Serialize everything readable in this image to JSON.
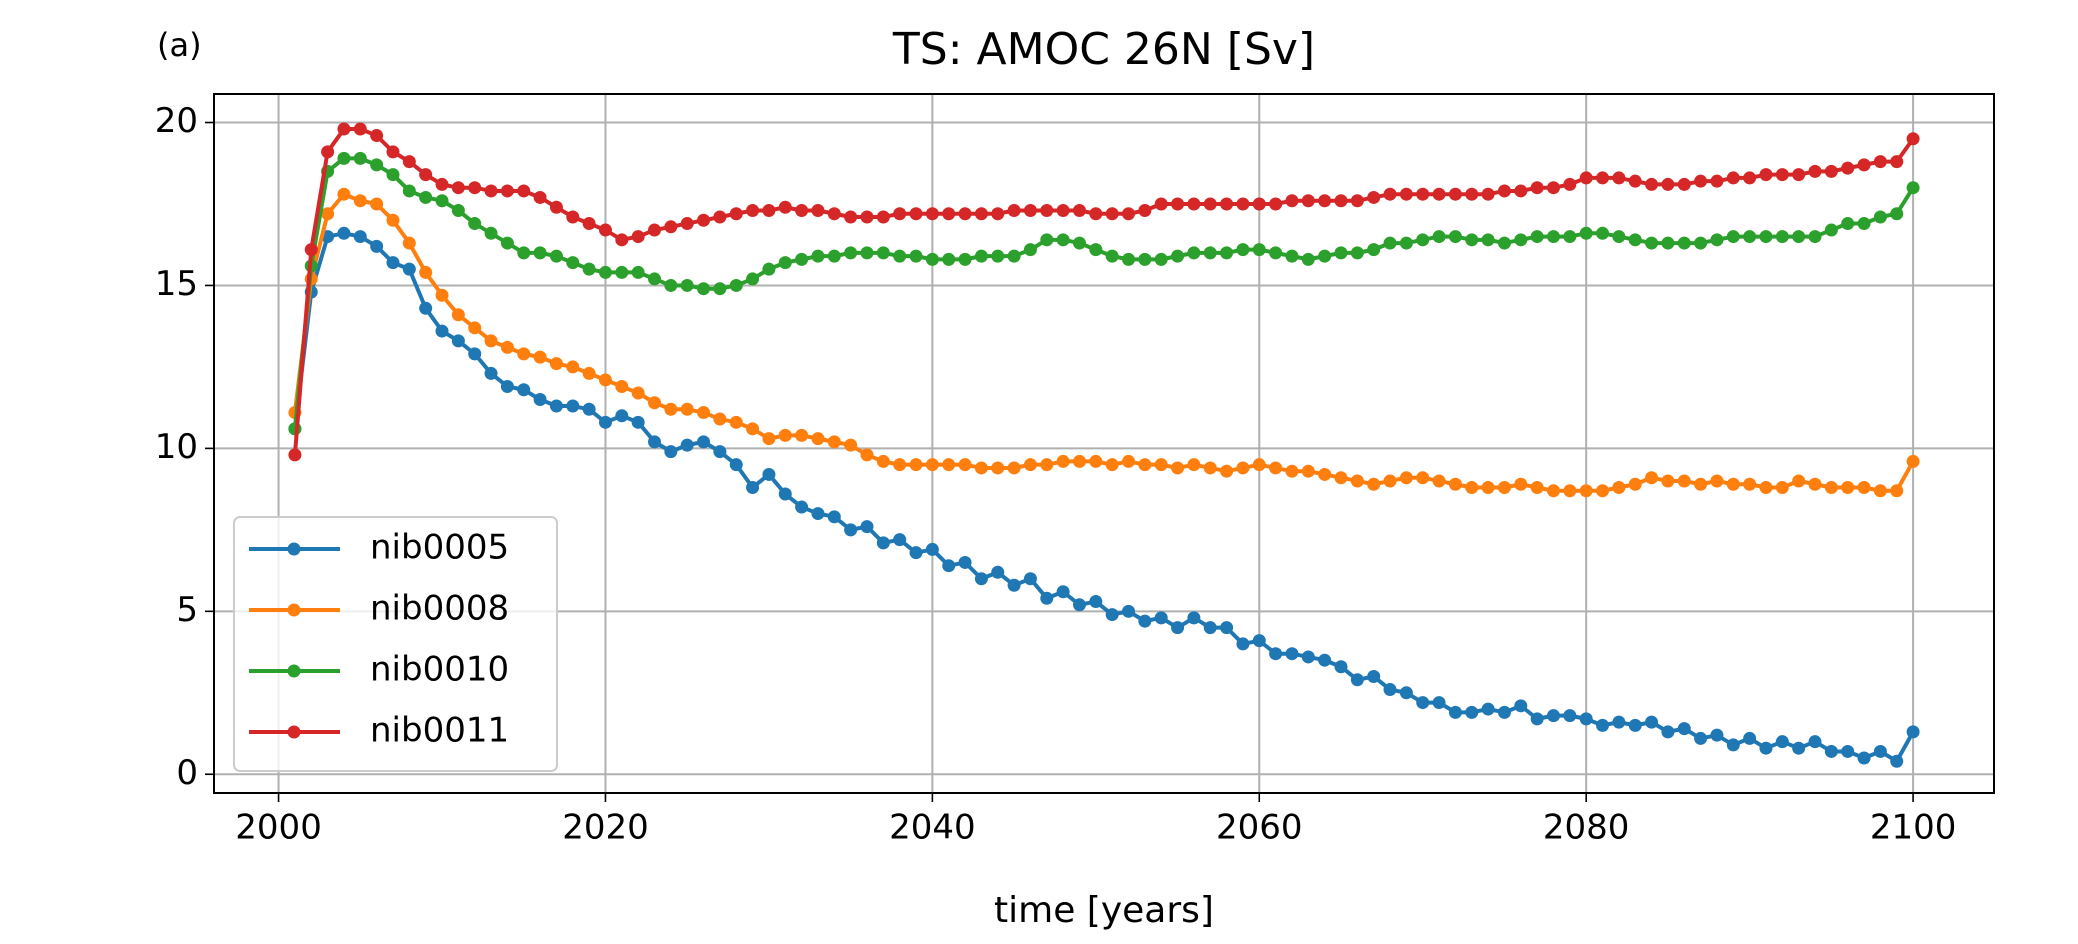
{
  "chart_data": {
    "type": "line",
    "title": "TS: AMOC 26N [Sv]",
    "panel_label": "(a)",
    "xlabel": "time [years]",
    "x": [
      2001,
      2002,
      2003,
      2004,
      2005,
      2006,
      2007,
      2008,
      2009,
      2010,
      2011,
      2012,
      2013,
      2014,
      2015,
      2016,
      2017,
      2018,
      2019,
      2020,
      2021,
      2022,
      2023,
      2024,
      2025,
      2026,
      2027,
      2028,
      2029,
      2030,
      2031,
      2032,
      2033,
      2034,
      2035,
      2036,
      2037,
      2038,
      2039,
      2040,
      2041,
      2042,
      2043,
      2044,
      2045,
      2046,
      2047,
      2048,
      2049,
      2050,
      2051,
      2052,
      2053,
      2054,
      2055,
      2056,
      2057,
      2058,
      2059,
      2060,
      2061,
      2062,
      2063,
      2064,
      2065,
      2066,
      2067,
      2068,
      2069,
      2070,
      2071,
      2072,
      2073,
      2074,
      2075,
      2076,
      2077,
      2078,
      2079,
      2080,
      2081,
      2082,
      2083,
      2084,
      2085,
      2086,
      2087,
      2088,
      2089,
      2090,
      2091,
      2092,
      2093,
      2094,
      2095,
      2096,
      2097,
      2098,
      2099,
      2100
    ],
    "series": [
      {
        "name": "nib0005",
        "color": "#1f77b4",
        "values": [
          10.6,
          14.8,
          16.5,
          16.6,
          16.5,
          16.2,
          15.7,
          15.5,
          14.3,
          13.6,
          13.3,
          12.9,
          12.3,
          11.9,
          11.8,
          11.5,
          11.3,
          11.3,
          11.2,
          10.8,
          11.0,
          10.8,
          10.2,
          9.9,
          10.1,
          10.2,
          9.9,
          9.5,
          8.8,
          9.2,
          8.6,
          8.2,
          8.0,
          7.9,
          7.5,
          7.6,
          7.1,
          7.2,
          6.8,
          6.9,
          6.4,
          6.5,
          6.0,
          6.2,
          5.8,
          6.0,
          5.4,
          5.6,
          5.2,
          5.3,
          4.9,
          5.0,
          4.7,
          4.8,
          4.5,
          4.8,
          4.5,
          4.5,
          4.0,
          4.1,
          3.7,
          3.7,
          3.6,
          3.5,
          3.3,
          2.9,
          3.0,
          2.6,
          2.5,
          2.2,
          2.2,
          1.9,
          1.9,
          2.0,
          1.9,
          2.1,
          1.7,
          1.8,
          1.8,
          1.7,
          1.5,
          1.6,
          1.5,
          1.6,
          1.3,
          1.4,
          1.1,
          1.2,
          0.9,
          1.1,
          0.8,
          1.0,
          0.8,
          1.0,
          0.7,
          0.7,
          0.5,
          0.7,
          0.4,
          1.3
        ]
      },
      {
        "name": "nib0008",
        "color": "#ff7f0e",
        "values": [
          11.1,
          15.2,
          17.2,
          17.8,
          17.6,
          17.5,
          17.0,
          16.3,
          15.4,
          14.7,
          14.1,
          13.7,
          13.3,
          13.1,
          12.9,
          12.8,
          12.6,
          12.5,
          12.3,
          12.1,
          11.9,
          11.7,
          11.4,
          11.2,
          11.2,
          11.1,
          10.9,
          10.8,
          10.6,
          10.3,
          10.4,
          10.4,
          10.3,
          10.2,
          10.1,
          9.8,
          9.6,
          9.5,
          9.5,
          9.5,
          9.5,
          9.5,
          9.4,
          9.4,
          9.4,
          9.5,
          9.5,
          9.6,
          9.6,
          9.6,
          9.5,
          9.6,
          9.5,
          9.5,
          9.4,
          9.5,
          9.4,
          9.3,
          9.4,
          9.5,
          9.4,
          9.3,
          9.3,
          9.2,
          9.1,
          9.0,
          8.9,
          9.0,
          9.1,
          9.1,
          9.0,
          8.9,
          8.8,
          8.8,
          8.8,
          8.9,
          8.8,
          8.7,
          8.7,
          8.7,
          8.7,
          8.8,
          8.9,
          9.1,
          9.0,
          9.0,
          8.9,
          9.0,
          8.9,
          8.9,
          8.8,
          8.8,
          9.0,
          8.9,
          8.8,
          8.8,
          8.8,
          8.7,
          8.7,
          9.6
        ]
      },
      {
        "name": "nib0010",
        "color": "#2ca02c",
        "values": [
          10.6,
          15.6,
          18.5,
          18.9,
          18.9,
          18.7,
          18.4,
          17.9,
          17.7,
          17.6,
          17.3,
          16.9,
          16.6,
          16.3,
          16.0,
          16.0,
          15.9,
          15.7,
          15.5,
          15.4,
          15.4,
          15.4,
          15.2,
          15.0,
          15.0,
          14.9,
          14.9,
          15.0,
          15.2,
          15.5,
          15.7,
          15.8,
          15.9,
          15.9,
          16.0,
          16.0,
          16.0,
          15.9,
          15.9,
          15.8,
          15.8,
          15.8,
          15.9,
          15.9,
          15.9,
          16.1,
          16.4,
          16.4,
          16.3,
          16.1,
          15.9,
          15.8,
          15.8,
          15.8,
          15.9,
          16.0,
          16.0,
          16.0,
          16.1,
          16.1,
          16.0,
          15.9,
          15.8,
          15.9,
          16.0,
          16.0,
          16.1,
          16.3,
          16.3,
          16.4,
          16.5,
          16.5,
          16.4,
          16.4,
          16.3,
          16.4,
          16.5,
          16.5,
          16.5,
          16.6,
          16.6,
          16.5,
          16.4,
          16.3,
          16.3,
          16.3,
          16.3,
          16.4,
          16.5,
          16.5,
          16.5,
          16.5,
          16.5,
          16.5,
          16.7,
          16.9,
          16.9,
          17.1,
          17.2,
          18.0
        ]
      },
      {
        "name": "nib0011",
        "color": "#d62728",
        "values": [
          9.8,
          16.1,
          19.1,
          19.8,
          19.8,
          19.6,
          19.1,
          18.8,
          18.4,
          18.1,
          18.0,
          18.0,
          17.9,
          17.9,
          17.9,
          17.7,
          17.4,
          17.1,
          16.9,
          16.7,
          16.4,
          16.5,
          16.7,
          16.8,
          16.9,
          17.0,
          17.1,
          17.2,
          17.3,
          17.3,
          17.4,
          17.3,
          17.3,
          17.2,
          17.1,
          17.1,
          17.1,
          17.2,
          17.2,
          17.2,
          17.2,
          17.2,
          17.2,
          17.2,
          17.3,
          17.3,
          17.3,
          17.3,
          17.3,
          17.2,
          17.2,
          17.2,
          17.3,
          17.5,
          17.5,
          17.5,
          17.5,
          17.5,
          17.5,
          17.5,
          17.5,
          17.6,
          17.6,
          17.6,
          17.6,
          17.6,
          17.7,
          17.8,
          17.8,
          17.8,
          17.8,
          17.8,
          17.8,
          17.8,
          17.9,
          17.9,
          18.0,
          18.0,
          18.1,
          18.3,
          18.3,
          18.3,
          18.2,
          18.1,
          18.1,
          18.1,
          18.2,
          18.2,
          18.3,
          18.3,
          18.4,
          18.4,
          18.4,
          18.5,
          18.5,
          18.6,
          18.7,
          18.8,
          18.8,
          19.5
        ]
      }
    ],
    "xlim": [
      1996.05,
      2104.95
    ],
    "xticks": [
      2000,
      2020,
      2040,
      2060,
      2080,
      2100
    ],
    "ylim": [
      -0.575,
      20.875
    ],
    "yticks": [
      0,
      5,
      10,
      15,
      20
    ],
    "grid": true,
    "legend": "lower left"
  }
}
